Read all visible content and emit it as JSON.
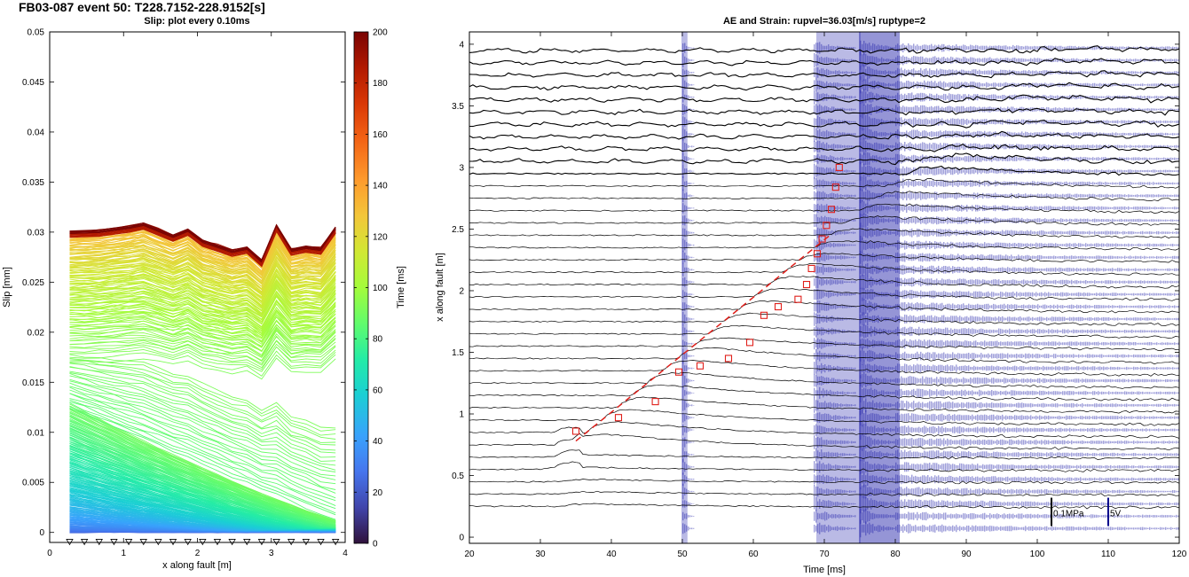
{
  "figure_title": "FB03-087 event 50: T228.7152-228.9152[s]",
  "chart_data": [
    {
      "type": "line",
      "title": "Slip: plot every 0.10ms",
      "xlabel": "x along fault [m]",
      "ylabel": "Slip [mm]",
      "xlim": [
        0,
        4
      ],
      "ylim": [
        -0.001,
        0.05
      ],
      "xticks": [
        "0",
        "1",
        "2",
        "3",
        "4"
      ],
      "yticks": [
        "0",
        "0.005",
        "0.01",
        "0.015",
        "0.02",
        "0.025",
        "0.03",
        "0.035",
        "0.04",
        "0.045",
        "0.05"
      ],
      "sensor_x": [
        0.27,
        0.47,
        0.67,
        0.87,
        1.07,
        1.27,
        1.47,
        1.67,
        1.87,
        2.07,
        2.27,
        2.47,
        2.67,
        2.87,
        3.07,
        3.27,
        3.47,
        3.67,
        3.87
      ],
      "final_slip_profile": {
        "x": [
          0.27,
          0.67,
          1.07,
          1.27,
          1.47,
          1.67,
          1.87,
          2.07,
          2.27,
          2.47,
          2.67,
          2.87,
          3.07,
          3.27,
          3.47,
          3.67,
          3.87
        ],
        "y": [
          0.0301,
          0.0302,
          0.0306,
          0.0309,
          0.0303,
          0.0297,
          0.0303,
          0.0292,
          0.0287,
          0.0282,
          0.0285,
          0.0272,
          0.0307,
          0.0283,
          0.0286,
          0.0284,
          0.0305
        ]
      },
      "colorbar": {
        "label": "Time [ms]",
        "range": [
          0,
          200
        ],
        "ticks": [
          "0",
          "20",
          "40",
          "60",
          "80",
          "100",
          "120",
          "140",
          "160",
          "180",
          "200"
        ],
        "colormap": "turbo"
      },
      "grid": false
    },
    {
      "type": "line",
      "title": "AE and Strain: rupvel=36.03[m/s] ruptype=2",
      "xlabel": "Time [ms]",
      "ylabel": "x along fault [m]",
      "xlim": [
        20,
        120
      ],
      "ylim": [
        -0.05,
        4.1
      ],
      "xticks": [
        "20",
        "30",
        "40",
        "50",
        "60",
        "70",
        "80",
        "90",
        "100",
        "110",
        "120"
      ],
      "yticks": [
        "0",
        "0.5",
        "1",
        "1.5",
        "2",
        "2.5",
        "3",
        "3.5",
        "4"
      ],
      "rupture_picks": {
        "time": [
          35.0,
          41.0,
          46.2,
          49.5,
          52.5,
          56.5,
          59.5,
          61.5,
          63.5,
          66.3,
          67.5,
          68.2,
          69.0,
          69.7,
          70.3,
          71.0,
          71.6,
          72.1
        ],
        "x": [
          0.86,
          0.97,
          1.1,
          1.34,
          1.39,
          1.45,
          1.58,
          1.8,
          1.87,
          1.93,
          2.05,
          2.18,
          2.3,
          2.42,
          2.53,
          2.66,
          2.84,
          3.0
        ]
      },
      "rupture_fit_line": {
        "time": [
          35.0,
          71.0
        ],
        "x": [
          0.78,
          2.46
        ]
      },
      "ae_burst_times": [
        50,
        69,
        75
      ],
      "scale_bars": [
        {
          "label": "0.1MPa",
          "color": "#000000"
        },
        {
          "label": "5V",
          "color": "#00008b"
        }
      ],
      "colors": {
        "strain": "#000000",
        "ae": "#1c1ca8",
        "picks": "#e0201b"
      },
      "grid": false
    }
  ]
}
